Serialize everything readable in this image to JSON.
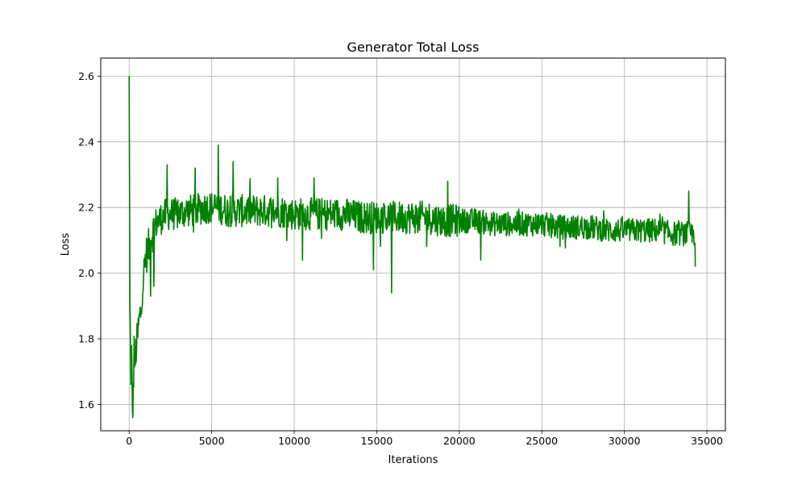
{
  "chart_data": {
    "type": "line",
    "title": "Generator Total Loss",
    "xlabel": "Iterations",
    "ylabel": "Loss",
    "xlim": [
      -1720,
      36120
    ],
    "ylim": [
      1.52,
      2.655
    ],
    "x_ticks": [
      0,
      5000,
      10000,
      15000,
      20000,
      25000,
      30000,
      35000
    ],
    "x_tick_labels": [
      "0",
      "5000",
      "10000",
      "15000",
      "20000",
      "25000",
      "30000",
      "35000"
    ],
    "y_ticks": [
      1.6,
      1.8,
      2.0,
      2.2,
      2.4,
      2.6
    ],
    "y_tick_labels": [
      "1.6",
      "1.8",
      "2.0",
      "2.2",
      "2.4",
      "2.6"
    ],
    "grid": true,
    "legend": "none",
    "series": [
      {
        "color": "#008000",
        "x": [
          0,
          50,
          100,
          150,
          200,
          250,
          300,
          350,
          400,
          500,
          600,
          700,
          800,
          900,
          1000,
          1200,
          1400,
          1600,
          1800,
          2000,
          2300,
          2600,
          3000,
          3500,
          4000,
          4500,
          5000,
          5400,
          6000,
          7000,
          8000,
          9000,
          10000,
          11000,
          12000,
          13000,
          14000,
          15000,
          15500,
          16000,
          17000,
          18000,
          19000,
          20000,
          21000,
          22000,
          23000,
          24000,
          25000,
          26000,
          27000,
          28000,
          29000,
          30000,
          31000,
          32000,
          33000,
          34000,
          34300
        ],
        "y": [
          2.6,
          1.89,
          1.7,
          1.75,
          1.57,
          1.62,
          1.78,
          1.7,
          1.76,
          1.8,
          1.85,
          1.88,
          1.96,
          2.0,
          2.05,
          2.08,
          2.12,
          2.15,
          2.16,
          2.17,
          2.18,
          2.18,
          2.18,
          2.19,
          2.19,
          2.2,
          2.2,
          2.2,
          2.19,
          2.19,
          2.19,
          2.19,
          2.18,
          2.18,
          2.18,
          2.18,
          2.17,
          2.17,
          2.17,
          2.17,
          2.17,
          2.17,
          2.16,
          2.16,
          2.16,
          2.15,
          2.15,
          2.15,
          2.15,
          2.14,
          2.14,
          2.14,
          2.13,
          2.13,
          2.13,
          2.13,
          2.12,
          2.12,
          2.12
        ],
        "noise_amplitude": 0.05,
        "spikes": [
          {
            "x": 5400,
            "y": 2.39
          },
          {
            "x": 4000,
            "y": 2.32
          },
          {
            "x": 2300,
            "y": 2.33
          },
          {
            "x": 6300,
            "y": 2.34
          },
          {
            "x": 9000,
            "y": 2.29
          },
          {
            "x": 11200,
            "y": 2.29
          },
          {
            "x": 14800,
            "y": 2.01
          },
          {
            "x": 15900,
            "y": 1.94
          },
          {
            "x": 10500,
            "y": 2.04
          },
          {
            "x": 19300,
            "y": 2.28
          },
          {
            "x": 21300,
            "y": 2.04
          },
          {
            "x": 33900,
            "y": 2.25
          },
          {
            "x": 34300,
            "y": 2.02
          },
          {
            "x": 1500,
            "y": 1.96
          },
          {
            "x": 1300,
            "y": 1.93
          }
        ]
      }
    ]
  }
}
